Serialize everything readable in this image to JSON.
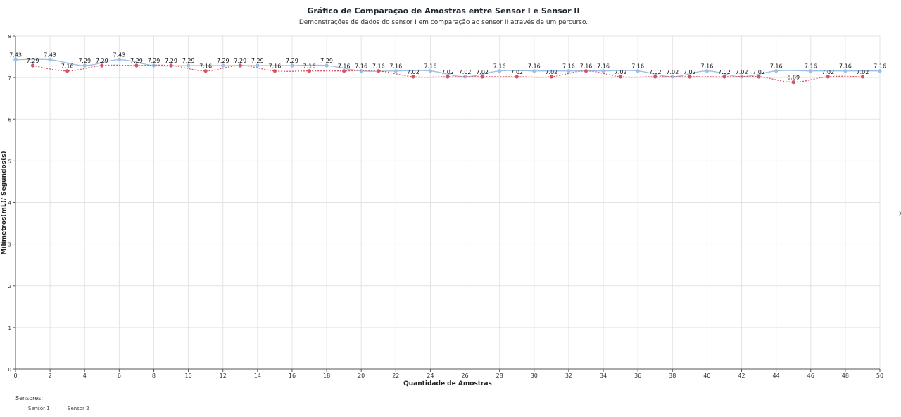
{
  "chart_data": {
    "type": "line",
    "title": "Gráfico de Comparação de  Amostras entre Sensor I e Sensor II",
    "subtitle": "Demonstrações de dados do sensor I em comparação ao sensor II através de um percurso.",
    "xlabel": "Quantidade de Amostras",
    "ylabel": "Milímetros(mL)/ Segundos(s)",
    "xlim": [
      0,
      50
    ],
    "ylim": [
      0,
      8
    ],
    "xticks": [
      0,
      2,
      4,
      6,
      8,
      10,
      12,
      14,
      16,
      18,
      20,
      22,
      24,
      26,
      28,
      30,
      32,
      34,
      36,
      38,
      40,
      42,
      44,
      46,
      48,
      50
    ],
    "yticks": [
      0,
      1,
      2,
      3,
      4,
      5,
      6,
      7,
      8
    ],
    "grid": true,
    "legend_title": "Sensores:",
    "legend_position": "bottom-left",
    "series": [
      {
        "name": "Sensor 1",
        "color": "#9dbfe2",
        "style": "solid",
        "x": [
          0,
          2,
          4,
          6,
          8,
          10,
          12,
          14,
          16,
          18,
          20,
          22,
          24,
          26,
          28,
          30,
          32,
          34,
          36,
          38,
          40,
          42,
          44,
          46,
          48,
          50
        ],
        "values": [
          7.43,
          7.43,
          7.29,
          7.43,
          7.29,
          7.29,
          7.29,
          7.29,
          7.29,
          7.29,
          7.16,
          7.16,
          7.16,
          7.02,
          7.16,
          7.16,
          7.16,
          7.16,
          7.16,
          7.02,
          7.16,
          7.02,
          7.16,
          7.16,
          7.16,
          7.16
        ]
      },
      {
        "name": "Sensor 2",
        "color": "#cf5567",
        "style": "dashed",
        "x": [
          1,
          3,
          5,
          7,
          9,
          11,
          13,
          15,
          17,
          19,
          21,
          23,
          25,
          27,
          29,
          31,
          33,
          35,
          37,
          39,
          41,
          43,
          45,
          47,
          49
        ],
        "values": [
          7.29,
          7.16,
          7.29,
          7.29,
          7.29,
          7.16,
          7.29,
          7.16,
          7.16,
          7.16,
          7.16,
          7.02,
          7.02,
          7.02,
          7.02,
          7.02,
          7.16,
          7.02,
          7.02,
          7.02,
          7.02,
          7.02,
          6.89,
          7.02,
          7.02
        ]
      }
    ]
  },
  "nav_arrow": "›"
}
